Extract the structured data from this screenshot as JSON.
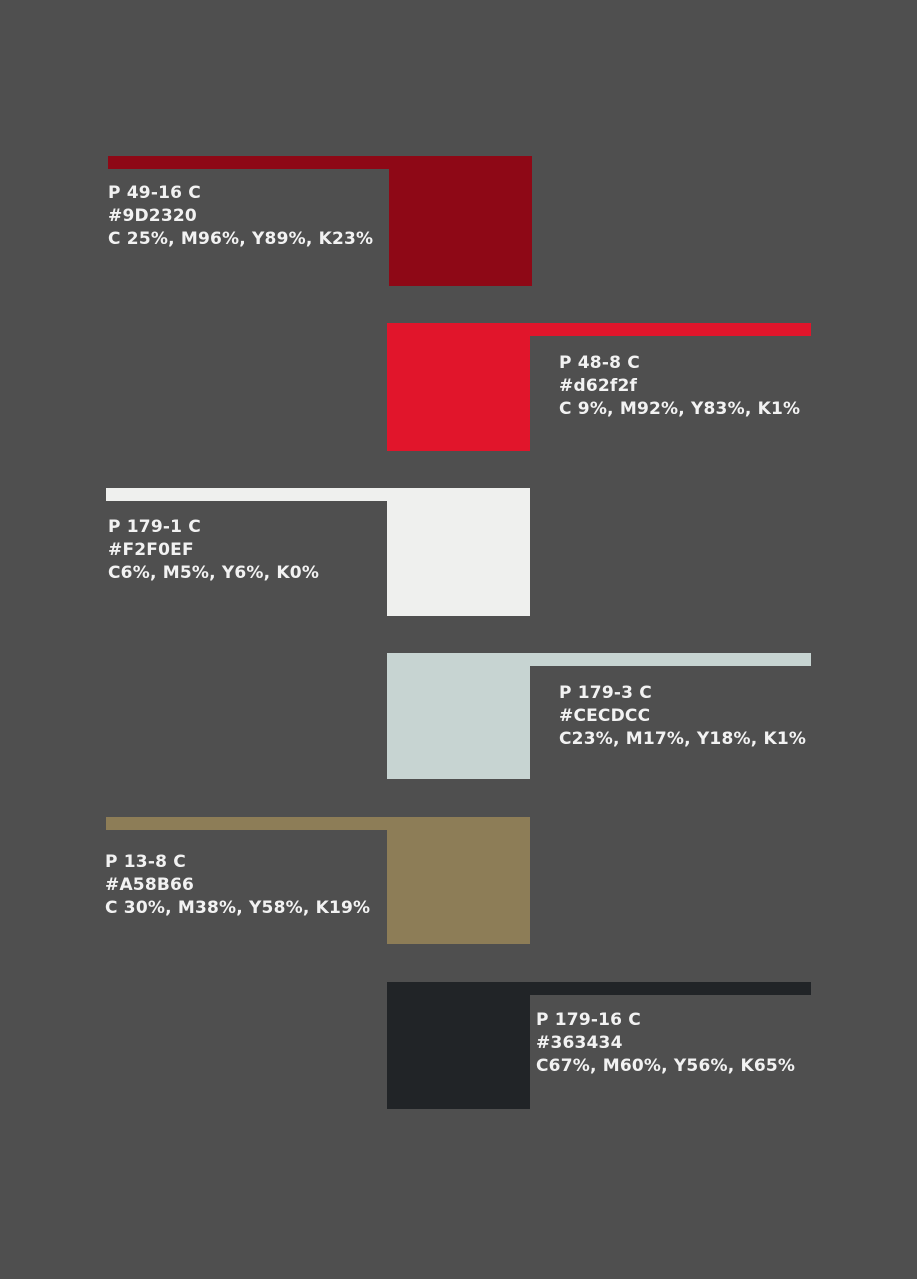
{
  "swatches": [
    {
      "color": "#8E0816",
      "code": "P 49-16 C",
      "hex": "#9D2320",
      "cmyk": "C 25%, M96%, Y89%, K23%"
    },
    {
      "color": "#E1152B",
      "code": "P 48-8 C",
      "hex": "#d62f2f",
      "cmyk": "C 9%, M92%, Y83%, K1%"
    },
    {
      "color": "#EFF0EE",
      "code": "P 179-1 C",
      "hex": "#F2F0EF",
      "cmyk": "C6%, M5%, Y6%, K0%"
    },
    {
      "color": "#C7D4D2",
      "code": "P 179-3 C",
      "hex": "#CECDCC",
      "cmyk": "C23%, M17%, Y18%, K1%"
    },
    {
      "color": "#8D7D57",
      "code": "P 13-8 C",
      "hex": "#A58B66",
      "cmyk": "C 30%, M38%, Y58%, K19%"
    },
    {
      "color": "#212427",
      "code": "P 179-16 C",
      "hex": "#363434",
      "cmyk": "C67%, M60%, Y56%, K65%"
    }
  ]
}
